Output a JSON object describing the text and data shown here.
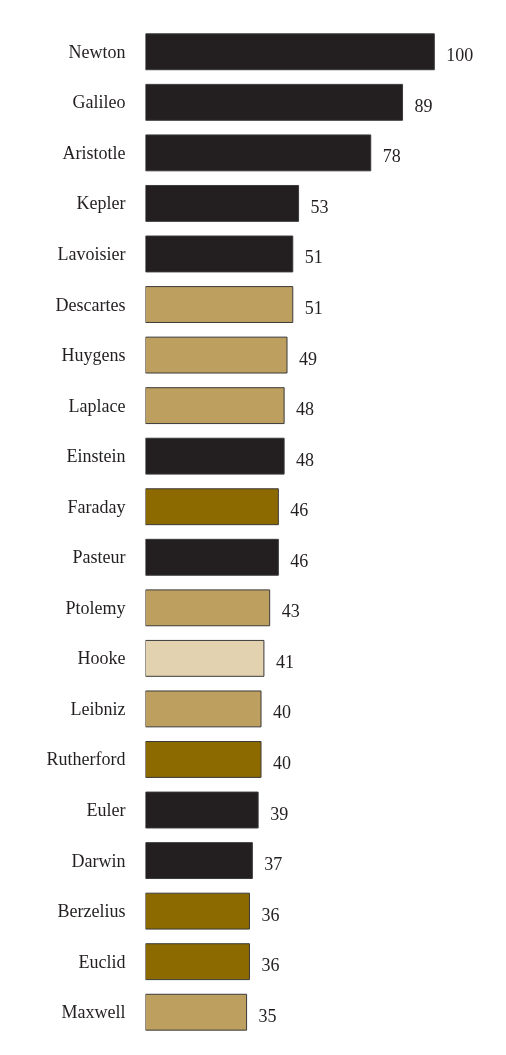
{
  "chart_data": {
    "type": "bar",
    "orientation": "horizontal",
    "data_labels": true,
    "grid": false,
    "categories": [
      "Newton",
      "Galileo",
      "Aristotle",
      "Kepler",
      "Lavoisier",
      "Descartes",
      "Huygens",
      "Laplace",
      "Einstein",
      "Faraday",
      "Pasteur",
      "Ptolemy",
      "Hooke",
      "Leibniz",
      "Rutherford",
      "Euler",
      "Darwin",
      "Berzelius",
      "Euclid",
      "Maxwell"
    ],
    "values": [
      100,
      89,
      78,
      53,
      51,
      51,
      49,
      48,
      48,
      46,
      46,
      43,
      41,
      40,
      40,
      39,
      37,
      36,
      36,
      35
    ],
    "colors": [
      "#231f20",
      "#231f20",
      "#231f20",
      "#231f20",
      "#231f20",
      "#bd9f5f",
      "#bd9f5f",
      "#bd9f5f",
      "#231f20",
      "#8c6a00",
      "#231f20",
      "#bd9f5f",
      "#e2d2b0",
      "#bd9f5f",
      "#8c6a00",
      "#231f20",
      "#231f20",
      "#8c6a00",
      "#8c6a00",
      "#bd9f5f"
    ]
  }
}
